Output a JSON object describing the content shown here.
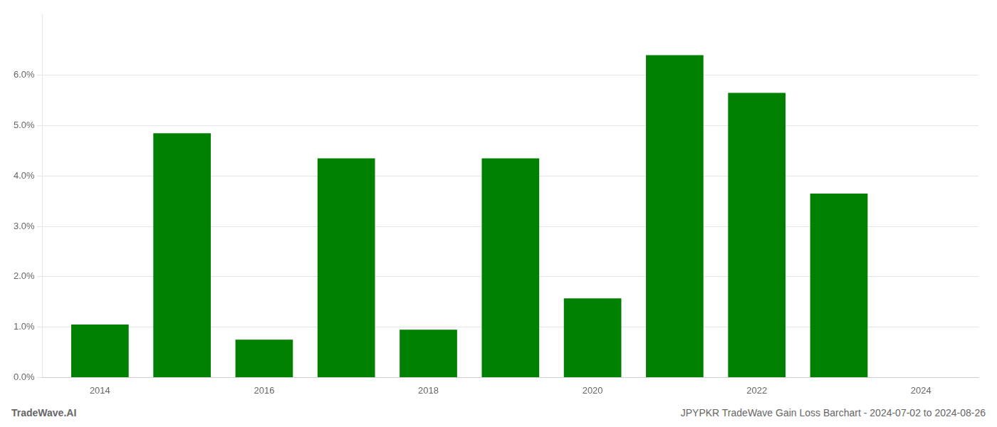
{
  "chart_data": {
    "type": "bar",
    "x": [
      2014,
      2015,
      2016,
      2017,
      2018,
      2019,
      2020,
      2021,
      2022,
      2023
    ],
    "values": [
      0.0105,
      0.0485,
      0.0075,
      0.0435,
      0.0095,
      0.0435,
      0.0157,
      0.064,
      0.0565,
      0.0365
    ],
    "color": "#008000",
    "xlim": [
      2013.3,
      2024.7
    ],
    "xticks": [
      2014,
      2016,
      2018,
      2020,
      2022,
      2024
    ],
    "ylim": [
      0,
      0.072
    ],
    "yticks": [
      {
        "value": 0.0,
        "label": "0.0%"
      },
      {
        "value": 0.01,
        "label": "1.0%"
      },
      {
        "value": 0.02,
        "label": "2.0%"
      },
      {
        "value": 0.03,
        "label": "3.0%"
      },
      {
        "value": 0.04,
        "label": "4.0%"
      },
      {
        "value": 0.05,
        "label": "5.0%"
      },
      {
        "value": 0.06,
        "label": "6.0%"
      }
    ],
    "grid": true,
    "annotations": [
      "TradeWave.AI",
      "JPYPKR TradeWave Gain Loss Barchart - 2024-07-02 to 2024-08-26"
    ]
  }
}
